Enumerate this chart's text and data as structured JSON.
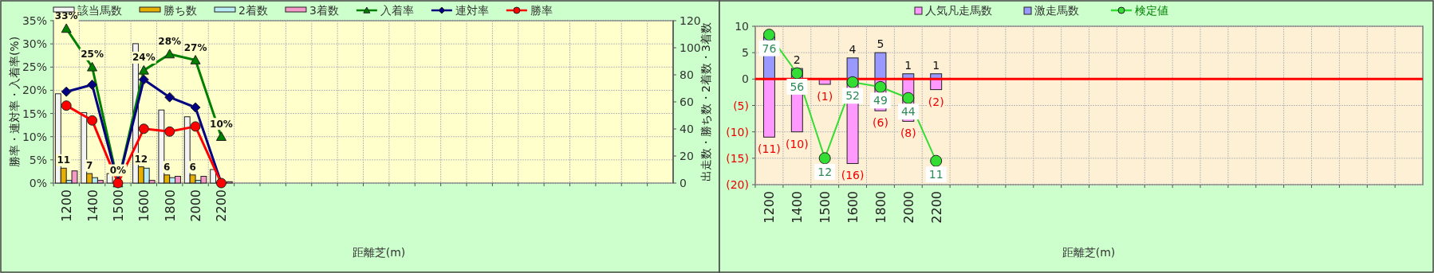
{
  "chart_data": [
    {
      "type": "bar",
      "categories": [
        "1200",
        "1400",
        "1500",
        "1600",
        "1800",
        "2000",
        "2200",
        null,
        null,
        null,
        null,
        null,
        null,
        null,
        null,
        null,
        null,
        null,
        null,
        null,
        null,
        null,
        null,
        null
      ],
      "xlabel": "距離芝(m)",
      "ylabel": "勝率・連対率・入着率(%)",
      "y2label": "出走数・勝ち数・2着数・3着数",
      "ylim": [
        0,
        35
      ],
      "yticks": [
        {
          "value": 0,
          "label": "0%"
        },
        {
          "value": 5,
          "label": "5%"
        },
        {
          "value": 10,
          "label": "10%"
        },
        {
          "value": 15,
          "label": "15%"
        },
        {
          "value": 20,
          "label": "20%"
        },
        {
          "value": 25,
          "label": "25%"
        },
        {
          "value": 30,
          "label": "30%"
        },
        {
          "value": 35,
          "label": "35%"
        }
      ],
      "y2lim": [
        0,
        120
      ],
      "y2ticks": [
        0,
        20,
        40,
        60,
        80,
        100,
        120
      ],
      "grid": true,
      "legend": "top",
      "series": [
        {
          "name": "該当馬数",
          "axis": "y2",
          "color": "#f4f4f4",
          "values": [
            66,
            52,
            7,
            103,
            54,
            49,
            10,
            null,
            null,
            null,
            null,
            null,
            null,
            null,
            null,
            null,
            null,
            null,
            null,
            null,
            null,
            null,
            null,
            null
          ]
        },
        {
          "name": "勝ち数",
          "axis": "y2",
          "color": "#e6b000",
          "values": [
            11,
            7,
            0,
            12,
            6,
            6,
            0,
            null,
            null,
            null,
            null,
            null,
            null,
            null,
            null,
            null,
            null,
            null,
            null,
            null,
            null,
            null,
            null,
            null
          ],
          "value_labels": [
            "11",
            "7",
            null,
            "12",
            "6",
            "6",
            null,
            null,
            null,
            null,
            null,
            null,
            null,
            null,
            null,
            null,
            null,
            null,
            null,
            null,
            null,
            null,
            null,
            null
          ]
        },
        {
          "name": "2着数",
          "axis": "y2",
          "color": "#b8ecf4",
          "values": [
            2,
            4,
            0,
            11,
            4,
            2,
            0,
            null,
            null,
            null,
            null,
            null,
            null,
            null,
            null,
            null,
            null,
            null,
            null,
            null,
            null,
            null,
            null,
            null
          ]
        },
        {
          "name": "3着数",
          "axis": "y2",
          "color": "#f49ac8",
          "values": [
            9,
            2,
            0,
            2,
            5,
            5,
            1,
            null,
            null,
            null,
            null,
            null,
            null,
            null,
            null,
            null,
            null,
            null,
            null,
            null,
            null,
            null,
            null,
            null
          ]
        },
        {
          "name": "入着率",
          "type": "line",
          "color": "#008000",
          "marker": "triangle",
          "values": [
            33.3,
            25,
            0,
            24.3,
            27.8,
            26.5,
            10,
            null,
            null,
            null,
            null,
            null,
            null,
            null,
            null,
            null,
            null,
            null,
            null,
            null,
            null,
            null,
            null,
            null
          ],
          "value_labels": [
            "33%",
            "25%",
            "0%",
            "24%",
            "28%",
            "27%",
            "10%",
            null,
            null,
            null,
            null,
            null,
            null,
            null,
            null,
            null,
            null,
            null,
            null,
            null,
            null,
            null,
            null,
            null
          ]
        },
        {
          "name": "連対率",
          "type": "line",
          "color": "#000080",
          "marker": "diamond",
          "values": [
            19.7,
            21.2,
            0,
            22.3,
            18.5,
            16.3,
            0,
            null,
            null,
            null,
            null,
            null,
            null,
            null,
            null,
            null,
            null,
            null,
            null,
            null,
            null,
            null,
            null,
            null
          ]
        },
        {
          "name": "勝率",
          "type": "line",
          "color": "#ff0000",
          "marker": "circle",
          "values": [
            16.7,
            13.5,
            0,
            11.7,
            11.1,
            12.2,
            0,
            null,
            null,
            null,
            null,
            null,
            null,
            null,
            null,
            null,
            null,
            null,
            null,
            null,
            null,
            null,
            null,
            null
          ]
        }
      ]
    },
    {
      "type": "bar",
      "stacked": true,
      "categories": [
        "1200",
        "1400",
        "1500",
        "1600",
        "1800",
        "2000",
        "2200",
        null,
        null,
        null,
        null,
        null,
        null,
        null,
        null,
        null,
        null,
        null,
        null,
        null,
        null,
        null,
        null,
        null
      ],
      "xlabel": "距離芝(m)",
      "ylim": [
        -20,
        10
      ],
      "yticks": [
        10,
        5,
        0,
        {
          "value": -5,
          "label": "(5)"
        },
        {
          "value": -10,
          "label": "(10)"
        },
        {
          "value": -15,
          "label": "(15)"
        },
        {
          "value": -20,
          "label": "(20)"
        }
      ],
      "grid": true,
      "legend": "top",
      "ref_lines": [
        {
          "axis": "y",
          "value": 0,
          "color": "#ff0000"
        }
      ],
      "series": [
        {
          "name": "人気凡走馬数",
          "color": "#ff99ff",
          "values": [
            -11,
            -10,
            -1,
            -16,
            -6,
            -8,
            -2,
            null,
            null,
            null,
            null,
            null,
            null,
            null,
            null,
            null,
            null,
            null,
            null,
            null,
            null,
            null,
            null,
            null
          ],
          "value_labels": [
            "(11)",
            "(10)",
            "(1)",
            "(16)",
            "(6)",
            "(8)",
            "(2)",
            null,
            null,
            null,
            null,
            null,
            null,
            null,
            null,
            null,
            null,
            null,
            null,
            null,
            null,
            null,
            null,
            null
          ]
        },
        {
          "name": "激走馬数",
          "color": "#9999ff",
          "values": [
            8,
            2,
            0,
            4,
            5,
            1,
            1,
            null,
            null,
            null,
            null,
            null,
            null,
            null,
            null,
            null,
            null,
            null,
            null,
            null,
            null,
            null,
            null,
            null
          ],
          "value_labels": [
            null,
            "2",
            null,
            "4",
            "5",
            "1",
            "1",
            null,
            null,
            null,
            null,
            null,
            null,
            null,
            null,
            null,
            null,
            null,
            null,
            null,
            null,
            null,
            null,
            null
          ]
        },
        {
          "name": "検定値",
          "type": "line",
          "color": "#33dd33",
          "marker": "circle",
          "values": [
            8.4,
            1.1,
            -15,
            -0.6,
            -1.5,
            -3.6,
            -15.5,
            null,
            null,
            null,
            null,
            null,
            null,
            null,
            null,
            null,
            null,
            null,
            null,
            null,
            null,
            null,
            null,
            null
          ]
        }
      ],
      "annotations": [
        {
          "text": "76",
          "x": "1200",
          "y": 8.4
        },
        {
          "text": "56",
          "x": "1400",
          "y": 1.1
        },
        {
          "text": "12",
          "x": "1500",
          "y": -15
        },
        {
          "text": "52",
          "x": "1600",
          "y": -0.6
        },
        {
          "text": "49",
          "x": "1800",
          "y": -1.5
        },
        {
          "text": "44",
          "x": "2000",
          "y": -3.6
        },
        {
          "text": "11",
          "x": "2200",
          "y": -15.5
        }
      ]
    }
  ]
}
